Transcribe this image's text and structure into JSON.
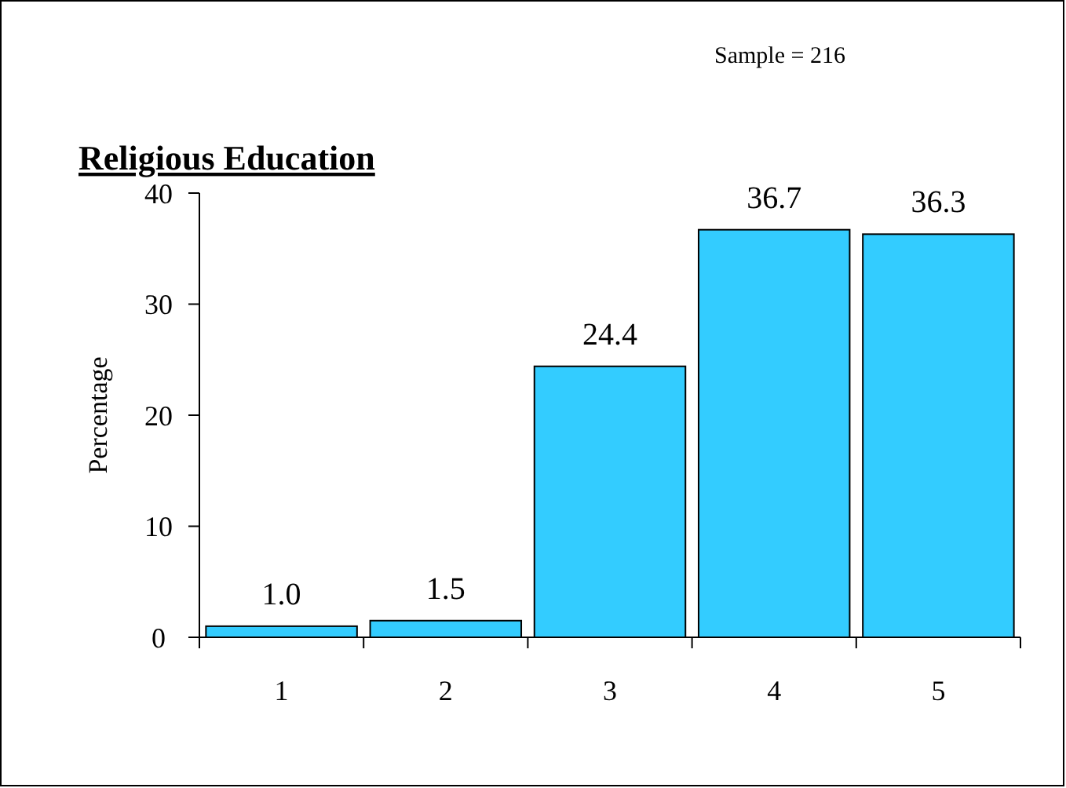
{
  "chart_data": {
    "type": "bar",
    "title": "Religious Education",
    "ylabel": "Percentage",
    "annotations": [
      "Sample = 216"
    ],
    "categories": [
      "1",
      "2",
      "3",
      "4",
      "5"
    ],
    "values": [
      1.0,
      1.5,
      24.4,
      36.7,
      36.3
    ],
    "color": "#33ccff",
    "value_labels": [
      "1.0",
      "1.5",
      "24.4",
      "36.7",
      "36.3"
    ],
    "ylim": [
      0,
      40
    ],
    "yticks": [
      0,
      10,
      20,
      30,
      40
    ],
    "grid": false
  }
}
